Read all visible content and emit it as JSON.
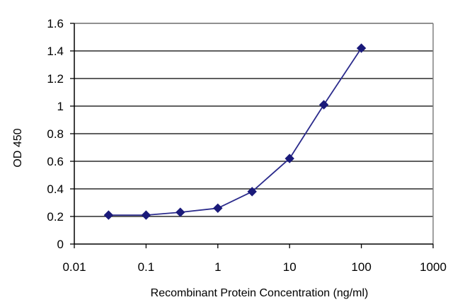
{
  "chart_data": {
    "type": "line",
    "title": "",
    "xlabel": "Recombinant Protein Concentration (ng/ml)",
    "ylabel": "OD 450",
    "xscale": "log",
    "xlim": [
      0.01,
      1000
    ],
    "ylim": [
      0,
      1.6
    ],
    "xticks": [
      0.01,
      0.1,
      1,
      10,
      100,
      1000
    ],
    "xtick_labels": [
      "0.01",
      "0.1",
      "1",
      "10",
      "100",
      "1000"
    ],
    "yticks": [
      0,
      0.2,
      0.4,
      0.6,
      0.8,
      1,
      1.2,
      1.4,
      1.6
    ],
    "ytick_labels": [
      "0",
      "0.2",
      "0.4",
      "0.6",
      "0.8",
      "1",
      "1.2",
      "1.4",
      "1.6"
    ],
    "grid": "horizontal",
    "legend": "none",
    "series": [
      {
        "x": [
          0.03,
          0.1,
          0.3,
          1,
          3,
          10,
          30,
          100
        ],
        "y": [
          0.21,
          0.21,
          0.23,
          0.26,
          0.38,
          0.62,
          1.01,
          1.42
        ],
        "color": "#2b2b8c",
        "marker": "diamond"
      }
    ],
    "colors": {
      "line": "#2b2b8c",
      "marker": "#1a1a7a",
      "grid": "#000000",
      "plot_border": "#808080"
    }
  }
}
